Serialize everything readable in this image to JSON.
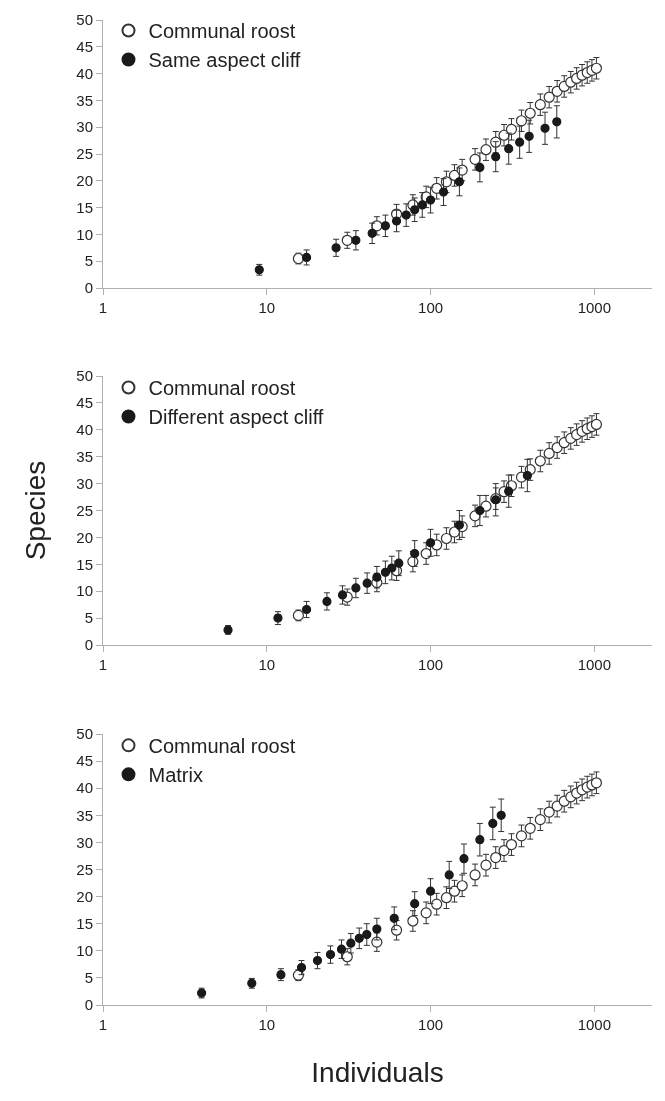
{
  "chart_data": [
    {
      "type": "scatter",
      "marker": "circle",
      "grid": false,
      "legend": "top left",
      "log": "x",
      "xlim": [
        1,
        2250
      ],
      "xticks": [
        1,
        10,
        100,
        1000
      ],
      "ylim": [
        0,
        50
      ],
      "yticks": [
        0,
        5,
        10,
        15,
        20,
        25,
        30,
        35,
        40,
        45,
        50
      ],
      "series": [
        {
          "name": "Communal roost",
          "color": "#ffffff",
          "x": [
            15.6,
            31,
            47,
            62,
            78,
            94,
            109,
            125,
            140,
            156,
            187,
            218,
            250,
            281,
            312,
            359,
            406,
            468,
            530,
            593,
            655,
            718,
            780,
            842,
            905,
            967,
            1030
          ],
          "values": [
            5.5,
            8.9,
            11.6,
            13.8,
            15.5,
            17,
            18.6,
            19.8,
            21,
            22,
            24,
            25.8,
            27.2,
            28.5,
            29.6,
            31.2,
            32.6,
            34.2,
            35.6,
            36.7,
            37.6,
            38.4,
            39.1,
            39.7,
            40.2,
            40.6,
            41
          ],
          "errors": [
            1,
            1.5,
            1.7,
            1.8,
            1.9,
            2,
            2,
            2,
            2,
            2,
            2,
            2,
            2,
            2,
            2,
            2,
            2,
            2,
            2,
            2,
            2,
            2,
            2,
            2,
            2,
            2,
            2
          ]
        },
        {
          "name": "Same aspect cliff",
          "color": "#1a1a1a",
          "x": [
            9,
            17.5,
            26.5,
            35,
            44,
            53,
            62,
            71,
            80,
            89,
            100,
            120,
            150,
            200,
            250,
            300,
            350,
            400,
            500,
            590
          ],
          "values": [
            3.4,
            5.7,
            7.5,
            8.9,
            10.2,
            11.6,
            12.5,
            13.6,
            14.6,
            15.5,
            16.4,
            17.9,
            19.8,
            22.5,
            24.5,
            26,
            27.2,
            28.3,
            29.8,
            31
          ],
          "errors": [
            1,
            1.4,
            1.6,
            1.8,
            1.9,
            2,
            2,
            2.1,
            2.2,
            2.3,
            2.4,
            2.5,
            2.6,
            2.7,
            2.8,
            2.9,
            3,
            3,
            3,
            3
          ]
        }
      ]
    },
    {
      "type": "scatter",
      "marker": "circle",
      "grid": false,
      "legend": "top left",
      "log": "x",
      "ylabel": "Species",
      "xlim": [
        1,
        2250
      ],
      "xticks": [
        1,
        10,
        100,
        1000
      ],
      "ylim": [
        0,
        50
      ],
      "yticks": [
        0,
        5,
        10,
        15,
        20,
        25,
        30,
        35,
        40,
        45,
        50
      ],
      "series": [
        {
          "name": "Communal roost",
          "color": "#ffffff",
          "x": [
            15.6,
            31,
            47,
            62,
            78,
            94,
            109,
            125,
            140,
            156,
            187,
            218,
            250,
            281,
            312,
            359,
            406,
            468,
            530,
            593,
            655,
            718,
            780,
            842,
            905,
            967,
            1030
          ],
          "values": [
            5.5,
            8.9,
            11.6,
            13.8,
            15.5,
            17,
            18.6,
            19.8,
            21,
            22,
            24,
            25.8,
            27.2,
            28.5,
            29.6,
            31.2,
            32.6,
            34.2,
            35.6,
            36.7,
            37.6,
            38.4,
            39.1,
            39.7,
            40.2,
            40.6,
            41
          ],
          "errors": [
            1,
            1.5,
            1.7,
            1.8,
            1.9,
            2,
            2,
            2,
            2,
            2,
            2,
            2,
            2,
            2,
            2,
            2,
            2,
            2,
            2,
            2,
            2,
            2,
            2,
            2,
            2,
            2,
            2
          ]
        },
        {
          "name": "Different aspect cliff",
          "color": "#1a1a1a",
          "x": [
            5.8,
            11.7,
            17.5,
            23.3,
            29,
            35,
            41,
            47,
            53,
            58,
            64,
            80,
            100,
            150,
            200,
            250,
            300,
            390
          ],
          "values": [
            2.8,
            5,
            6.6,
            8.1,
            9.3,
            10.6,
            11.5,
            12.6,
            13.5,
            14.3,
            15.2,
            17,
            19,
            22.3,
            25,
            27,
            28.6,
            31.5
          ],
          "errors": [
            0.8,
            1.2,
            1.5,
            1.6,
            1.7,
            1.8,
            1.9,
            2,
            2.1,
            2.2,
            2.3,
            2.4,
            2.5,
            2.7,
            2.8,
            3,
            3,
            3
          ]
        }
      ]
    },
    {
      "type": "scatter",
      "marker": "circle",
      "grid": false,
      "legend": "top left",
      "log": "x",
      "xlabel": "Individuals",
      "xlim": [
        1,
        2250
      ],
      "xticks": [
        1,
        10,
        100,
        1000
      ],
      "ylim": [
        0,
        50
      ],
      "yticks": [
        0,
        5,
        10,
        15,
        20,
        25,
        30,
        35,
        40,
        45,
        50
      ],
      "series": [
        {
          "name": "Communal roost",
          "color": "#ffffff",
          "x": [
            15.6,
            31,
            47,
            62,
            78,
            94,
            109,
            125,
            140,
            156,
            187,
            218,
            250,
            281,
            312,
            359,
            406,
            468,
            530,
            593,
            655,
            718,
            780,
            842,
            905,
            967,
            1030
          ],
          "values": [
            5.5,
            8.9,
            11.6,
            13.8,
            15.5,
            17,
            18.6,
            19.8,
            21,
            22,
            24,
            25.8,
            27.2,
            28.5,
            29.6,
            31.2,
            32.6,
            34.2,
            35.6,
            36.7,
            37.6,
            38.4,
            39.1,
            39.7,
            40.2,
            40.6,
            41
          ],
          "errors": [
            1,
            1.5,
            1.7,
            1.8,
            1.9,
            2,
            2,
            2,
            2,
            2,
            2,
            2,
            2,
            2,
            2,
            2,
            2,
            2,
            2,
            2,
            2,
            2,
            2,
            2,
            2,
            2,
            2
          ]
        },
        {
          "name": "Matrix",
          "color": "#1a1a1a",
          "x": [
            4,
            8.1,
            12.2,
            16.3,
            20.4,
            24.5,
            28.6,
            32.6,
            36.7,
            40.8,
            47,
            60,
            80,
            100,
            130,
            160,
            200,
            240,
            270
          ],
          "values": [
            2.2,
            4,
            5.6,
            6.9,
            8.2,
            9.3,
            10.3,
            11.4,
            12.3,
            13,
            14,
            16,
            18.7,
            21,
            24,
            27,
            30.5,
            33.5,
            35
          ],
          "errors": [
            0.9,
            0.9,
            1.1,
            1.3,
            1.5,
            1.6,
            1.7,
            1.8,
            1.9,
            2,
            2,
            2.1,
            2.2,
            2.3,
            2.5,
            2.7,
            3,
            3,
            3
          ]
        }
      ]
    }
  ]
}
